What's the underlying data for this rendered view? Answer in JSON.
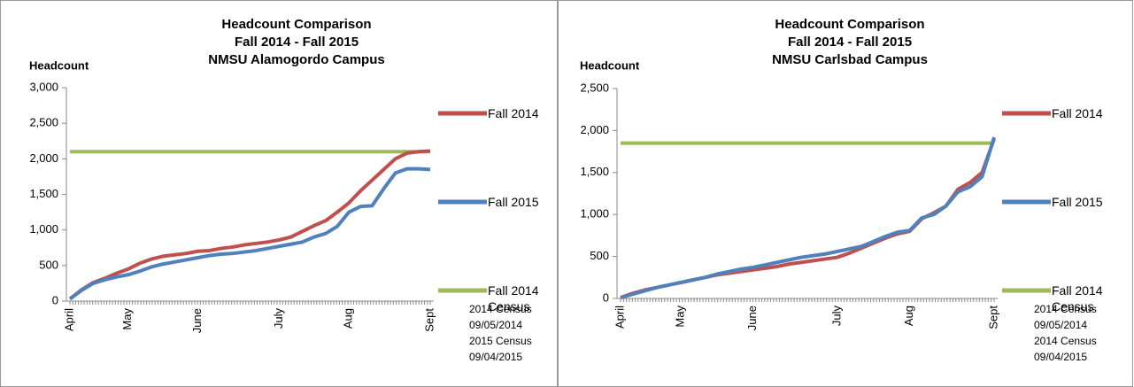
{
  "chart_data": [
    {
      "type": "line",
      "title": [
        "Headcount Comparison",
        "Fall 2014 - Fall 2015",
        "NMSU Alamogordo Campus"
      ],
      "y_label": "Headcount",
      "categories": [
        "April",
        null,
        null,
        null,
        null,
        "May",
        null,
        null,
        null,
        null,
        null,
        "June",
        null,
        null,
        null,
        null,
        null,
        null,
        "July",
        null,
        null,
        null,
        null,
        null,
        "Aug",
        null,
        null,
        null,
        null,
        null,
        null,
        "Sept"
      ],
      "series": [
        {
          "name": "Fall 2014",
          "color": "#c0504d",
          "values": [
            30,
            160,
            260,
            320,
            390,
            450,
            530,
            590,
            630,
            650,
            670,
            700,
            710,
            740,
            760,
            790,
            810,
            830,
            860,
            900,
            980,
            1060,
            1130,
            1250,
            1380,
            1550,
            1700,
            1850,
            2000,
            2080,
            2100,
            2110
          ]
        },
        {
          "name": "Fall 2015",
          "color": "#4f81bd",
          "values": [
            30,
            150,
            250,
            300,
            340,
            370,
            420,
            480,
            520,
            550,
            580,
            610,
            640,
            660,
            670,
            690,
            710,
            740,
            770,
            800,
            830,
            900,
            950,
            1050,
            1250,
            1330,
            1340,
            1580,
            1800,
            1860,
            1860,
            1850
          ]
        },
        {
          "name": "Fall 2014 Census",
          "color": "#9bbb59",
          "values": [
            2100,
            2100,
            2100,
            2100,
            2100,
            2100,
            2100,
            2100,
            2100,
            2100,
            2100,
            2100,
            2100,
            2100,
            2100,
            2100,
            2100,
            2100,
            2100,
            2100,
            2100,
            2100,
            2100,
            2100,
            2100,
            2100,
            2100,
            2100,
            2100,
            2100,
            2100,
            2100
          ]
        }
      ],
      "ylim": [
        0,
        3000
      ],
      "yticks": [
        0,
        {
          "value": 500,
          "label": "500"
        },
        {
          "value": 1000,
          "label": "1,000"
        },
        {
          "value": 1500,
          "label": "1,500"
        },
        {
          "value": 2000,
          "label": "2,000"
        },
        {
          "value": 2500,
          "label": "2,500"
        },
        {
          "value": 3000,
          "label": "3,000"
        }
      ],
      "notes": [
        "2014 Census",
        "09/05/2014",
        "2015 Census",
        "09/04/2015"
      ]
    },
    {
      "type": "line",
      "title": [
        "Headcount Comparison",
        "Fall 2014 - Fall 2015",
        "NMSU Carlsbad Campus"
      ],
      "y_label": "Headcount",
      "categories": [
        "April",
        null,
        null,
        null,
        null,
        "May",
        null,
        null,
        null,
        null,
        null,
        "June",
        null,
        null,
        null,
        null,
        null,
        null,
        "July",
        null,
        null,
        null,
        null,
        null,
        "Aug",
        null,
        null,
        null,
        null,
        null,
        null,
        "Sept"
      ],
      "series": [
        {
          "name": "Fall 2014",
          "color": "#c0504d",
          "values": [
            10,
            60,
            100,
            130,
            160,
            190,
            220,
            250,
            280,
            300,
            320,
            340,
            360,
            380,
            410,
            430,
            450,
            470,
            490,
            540,
            600,
            660,
            720,
            770,
            800,
            950,
            1020,
            1100,
            1300,
            1380,
            1500,
            1900
          ]
        },
        {
          "name": "Fall 2015",
          "color": "#4f81bd",
          "values": [
            10,
            50,
            90,
            130,
            160,
            190,
            220,
            250,
            290,
            320,
            350,
            370,
            400,
            430,
            460,
            490,
            510,
            530,
            560,
            590,
            620,
            680,
            740,
            790,
            810,
            960,
            1000,
            1100,
            1270,
            1330,
            1450,
            1920
          ]
        },
        {
          "name": "Fall 2014 Census",
          "color": "#9bbb59",
          "values": [
            1850,
            1850,
            1850,
            1850,
            1850,
            1850,
            1850,
            1850,
            1850,
            1850,
            1850,
            1850,
            1850,
            1850,
            1850,
            1850,
            1850,
            1850,
            1850,
            1850,
            1850,
            1850,
            1850,
            1850,
            1850,
            1850,
            1850,
            1850,
            1850,
            1850,
            1850,
            1850
          ]
        }
      ],
      "ylim": [
        0,
        2500
      ],
      "yticks": [
        0,
        {
          "value": 500,
          "label": "500"
        },
        {
          "value": 1000,
          "label": "1,000"
        },
        {
          "value": 1500,
          "label": "1,500"
        },
        {
          "value": 2000,
          "label": "2,000"
        },
        {
          "value": 2500,
          "label": "2,500"
        }
      ],
      "notes": [
        "2014 Census",
        "09/05/2014",
        "2014 Census",
        "09/04/2015"
      ]
    }
  ]
}
